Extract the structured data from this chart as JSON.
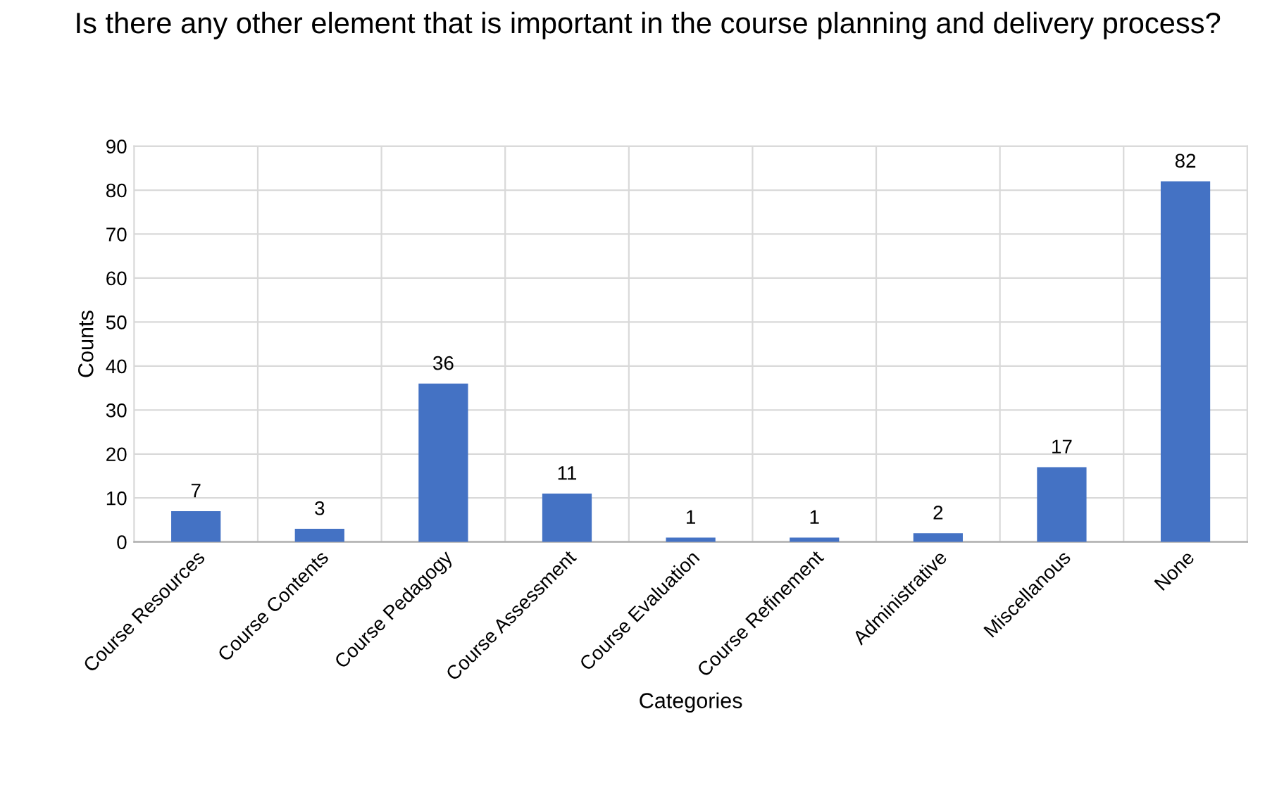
{
  "chart_data": {
    "type": "bar",
    "title": "Is there any other element that is important in the course planning and delivery process?",
    "xlabel": "Categories",
    "ylabel": "Counts",
    "categories": [
      "Course Resources",
      "Course Contents",
      "Course Pedagogy",
      "Course Assessment",
      "Course Evaluation",
      "Course Refinement",
      "Administrative",
      "Miscellanous",
      "None"
    ],
    "values": [
      7,
      3,
      36,
      11,
      1,
      1,
      2,
      17,
      82
    ],
    "color": "#4472c4",
    "ylim": [
      0,
      90
    ],
    "yticks": [
      0,
      10,
      20,
      30,
      40,
      50,
      60,
      70,
      80,
      90
    ],
    "grid": true,
    "data_labels": true
  }
}
